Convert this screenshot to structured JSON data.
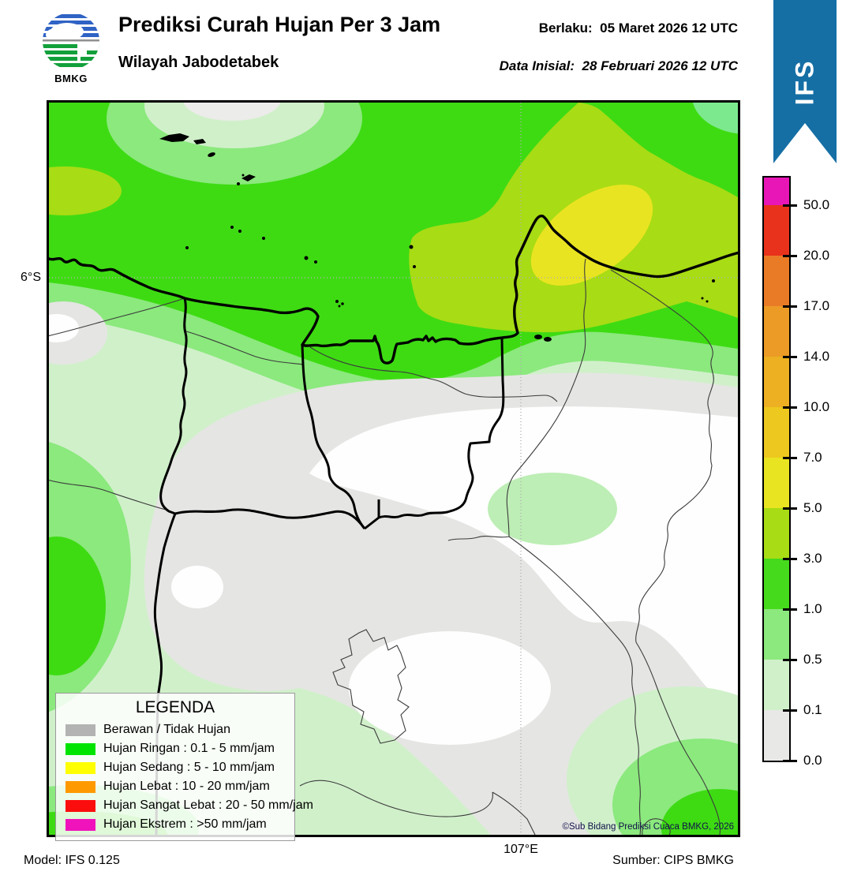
{
  "header": {
    "title": "Prediksi Curah Hujan Per 3 Jam",
    "subtitle": "Wilayah Jabodetabek",
    "valid_label": "Berlaku:",
    "valid_value": "05 Maret 2026 12 UTC",
    "init_label": "Data Inisial:",
    "init_value": "28 Februari 2026 12 UTC",
    "logo_text": "BMKG",
    "ribbon_label": "IFS",
    "ribbon_color": "#156fa5"
  },
  "map": {
    "lat_label": "6°S",
    "lon_label": "107°E",
    "copyright": "©Sub Bidang Prediksi Cuaca BMKG, 2026"
  },
  "legend": {
    "title": "LEGENDA",
    "items": [
      {
        "label": "Berawan / Tidak Hujan",
        "color": "#b3b3b3"
      },
      {
        "label": "Hujan Ringan : 0.1 - 5 mm/jam",
        "color": "#00e400"
      },
      {
        "label": "Hujan Sedang : 5 - 10 mm/jam",
        "color": "#ffff00"
      },
      {
        "label": "Hujan Lebat : 10 - 20 mm/jam",
        "color": "#ff9900"
      },
      {
        "label": "Hujan Sangat Lebat : 20 - 50 mm/jam",
        "color": "#fb0d0d"
      },
      {
        "label": "Hujan Ekstrem : >50 mm/jam",
        "color": "#f013bb"
      }
    ]
  },
  "colorbar": {
    "ticks": [
      "50.0",
      "20.0",
      "17.0",
      "14.0",
      "10.0",
      "7.0",
      "5.0",
      "3.0",
      "1.0",
      "0.5",
      "0.1",
      "0.0"
    ],
    "bands_top_to_bottom": [
      {
        "range": "gt50",
        "color": "#e816b6"
      },
      {
        "range": "20-50",
        "color": "#e8321c"
      },
      {
        "range": "17-20",
        "color": "#ea7b26"
      },
      {
        "range": "14-17",
        "color": "#ec9b26"
      },
      {
        "range": "10-14",
        "color": "#ecb022"
      },
      {
        "range": "7-10",
        "color": "#edc81e"
      },
      {
        "range": "5-7",
        "color": "#e9e421"
      },
      {
        "range": "3-5",
        "color": "#a8dc14"
      },
      {
        "range": "1-3",
        "color": "#46da1c"
      },
      {
        "range": "0.5-1",
        "color": "#8be97d"
      },
      {
        "range": "0.1-0.5",
        "color": "#d0f0ca"
      },
      {
        "range": "0-0.1",
        "color": "#e8e8e6"
      }
    ]
  },
  "footer": {
    "model": "Model: IFS 0.125",
    "source": "Sumber: CIPS BMKG"
  }
}
